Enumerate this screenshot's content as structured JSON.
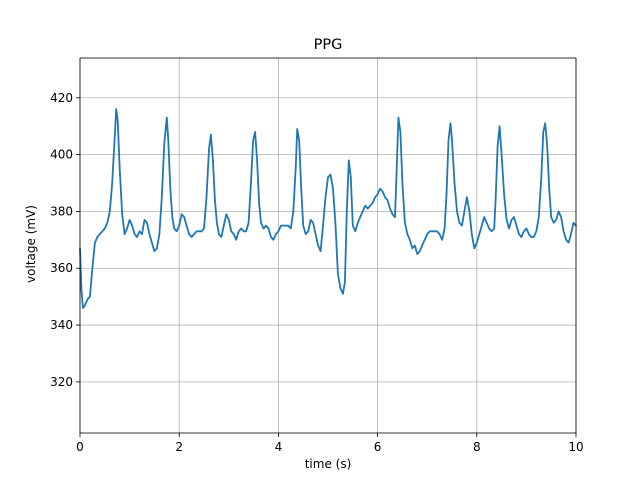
{
  "chart_data": {
    "type": "line",
    "title": "PPG",
    "xlabel": "time (s)",
    "ylabel": "voltage (mV)",
    "xlim": [
      0,
      10
    ],
    "ylim": [
      302,
      434
    ],
    "xticks": [
      "0",
      "2",
      "4",
      "6",
      "8",
      "10"
    ],
    "yticks": [
      "320",
      "340",
      "360",
      "380",
      "400",
      "420"
    ],
    "grid": true,
    "series": [
      {
        "color": "#1f77b4",
        "x": [
          0.0,
          0.03,
          0.06,
          0.1,
          0.15,
          0.2,
          0.25,
          0.3,
          0.35,
          0.4,
          0.45,
          0.5,
          0.55,
          0.6,
          0.65,
          0.7,
          0.73,
          0.76,
          0.8,
          0.85,
          0.9,
          0.95,
          1.0,
          1.05,
          1.1,
          1.15,
          1.2,
          1.25,
          1.3,
          1.35,
          1.4,
          1.45,
          1.5,
          1.55,
          1.6,
          1.65,
          1.7,
          1.75,
          1.78,
          1.82,
          1.86,
          1.9,
          1.95,
          2.0,
          2.05,
          2.1,
          2.15,
          2.2,
          2.25,
          2.3,
          2.35,
          2.4,
          2.45,
          2.5,
          2.55,
          2.6,
          2.64,
          2.68,
          2.72,
          2.76,
          2.8,
          2.85,
          2.9,
          2.95,
          3.0,
          3.05,
          3.1,
          3.15,
          3.2,
          3.25,
          3.3,
          3.35,
          3.4,
          3.45,
          3.49,
          3.53,
          3.57,
          3.61,
          3.65,
          3.7,
          3.75,
          3.8,
          3.85,
          3.9,
          3.95,
          4.0,
          4.05,
          4.1,
          4.15,
          4.2,
          4.25,
          4.3,
          4.35,
          4.38,
          4.42,
          4.46,
          4.5,
          4.55,
          4.6,
          4.65,
          4.7,
          4.75,
          4.8,
          4.85,
          4.9,
          4.95,
          5.0,
          5.05,
          5.1,
          5.15,
          5.2,
          5.25,
          5.3,
          5.34,
          5.38,
          5.42,
          5.46,
          5.5,
          5.55,
          5.6,
          5.65,
          5.7,
          5.75,
          5.8,
          5.85,
          5.9,
          5.95,
          6.0,
          6.05,
          6.1,
          6.15,
          6.2,
          6.25,
          6.3,
          6.35,
          6.38,
          6.42,
          6.46,
          6.5,
          6.55,
          6.6,
          6.65,
          6.7,
          6.75,
          6.8,
          6.85,
          6.9,
          6.95,
          7.0,
          7.05,
          7.1,
          7.15,
          7.2,
          7.25,
          7.3,
          7.35,
          7.39,
          7.43,
          7.47,
          7.5,
          7.55,
          7.6,
          7.65,
          7.7,
          7.75,
          7.8,
          7.85,
          7.9,
          7.95,
          8.0,
          8.05,
          8.1,
          8.15,
          8.2,
          8.25,
          8.3,
          8.35,
          8.38,
          8.42,
          8.46,
          8.5,
          8.55,
          8.6,
          8.65,
          8.7,
          8.75,
          8.8,
          8.85,
          8.9,
          8.95,
          9.0,
          9.05,
          9.1,
          9.15,
          9.2,
          9.25,
          9.3,
          9.34,
          9.38,
          9.42,
          9.46,
          9.5,
          9.55,
          9.6,
          9.65,
          9.7,
          9.75,
          9.8,
          9.85,
          9.9,
          9.95,
          10.0
        ],
        "y": [
          367,
          352,
          346,
          347,
          349,
          350,
          360,
          369,
          371,
          372,
          373,
          374,
          376,
          380,
          390,
          406,
          416,
          412,
          395,
          379,
          372,
          374,
          377,
          375,
          372,
          371,
          373,
          372,
          377,
          376,
          372,
          369,
          366,
          367,
          372,
          385,
          404,
          413,
          405,
          388,
          378,
          374,
          373,
          375,
          379,
          378,
          375,
          372,
          371,
          372,
          373,
          373,
          373,
          374,
          385,
          402,
          407,
          398,
          384,
          376,
          372,
          371,
          375,
          379,
          377,
          373,
          372,
          370,
          373,
          374,
          373,
          373,
          376,
          391,
          405,
          408,
          398,
          383,
          376,
          374,
          375,
          374,
          371,
          370,
          372,
          373,
          375,
          375,
          375,
          375,
          374,
          380,
          396,
          409,
          405,
          388,
          375,
          372,
          373,
          377,
          376,
          372,
          368,
          366,
          375,
          385,
          392,
          393,
          388,
          376,
          358,
          353,
          351,
          355,
          380,
          398,
          392,
          375,
          373,
          376,
          378,
          380,
          382,
          381,
          382,
          383,
          385,
          386,
          388,
          387,
          385,
          384,
          381,
          379,
          378,
          392,
          413,
          408,
          390,
          376,
          372,
          370,
          367,
          368,
          365,
          366,
          368,
          370,
          372,
          373,
          373,
          373,
          373,
          372,
          370,
          374,
          386,
          405,
          411,
          405,
          390,
          380,
          376,
          375,
          380,
          385,
          380,
          372,
          367,
          369,
          372,
          375,
          378,
          376,
          374,
          373,
          374,
          384,
          403,
          410,
          400,
          386,
          377,
          374,
          377,
          378,
          375,
          372,
          371,
          373,
          374,
          372,
          371,
          371,
          373,
          378,
          392,
          408,
          411,
          403,
          388,
          378,
          376,
          377,
          380,
          378,
          373,
          370,
          369,
          372,
          376,
          375
        ]
      }
    ]
  }
}
